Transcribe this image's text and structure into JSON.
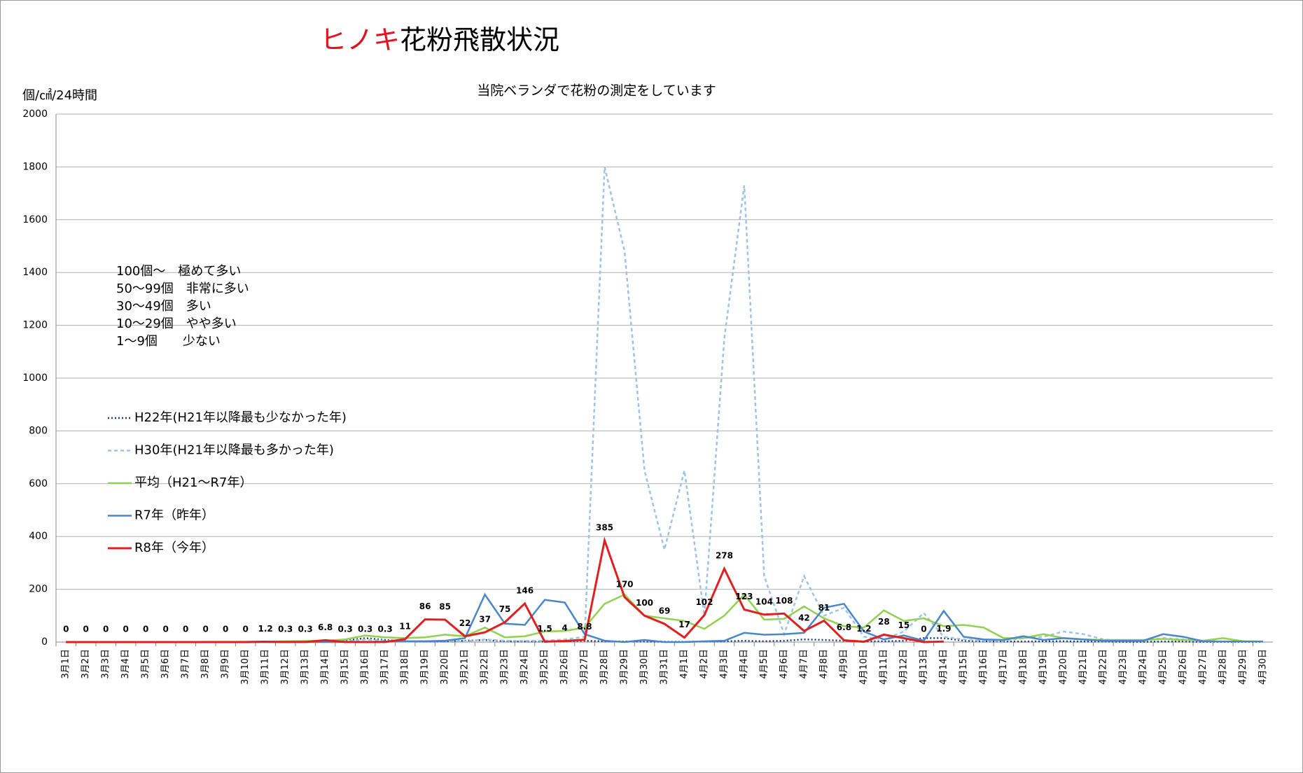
{
  "chart_data": {
    "type": "line",
    "title": [
      "ヒノキ",
      "花粉飛散状況"
    ],
    "title_colors": [
      "#e0141e",
      "#000000"
    ],
    "subtitle": "当院ベランダで花粉の測定をしています",
    "y_label": "個/㎠/24時間",
    "annotations": [
      "100個～　極めて多い",
      "50～99個　非常に多い",
      "30～49個　多い",
      "10～29個　やや多い",
      "1～9個　　少ない"
    ],
    "categories": [
      "3月1日",
      "3月2日",
      "3月3日",
      "3月4日",
      "3月5日",
      "3月6日",
      "3月7日",
      "3月8日",
      "3月9日",
      "3月10日",
      "3月11日",
      "3月12日",
      "3月13日",
      "3月14日",
      "3月15日",
      "3月16日",
      "3月17日",
      "3月18日",
      "3月19日",
      "3月20日",
      "3月21日",
      "3月22日",
      "3月23日",
      "3月24日",
      "3月25日",
      "3月26日",
      "3月27日",
      "3月28日",
      "3月29日",
      "3月30日",
      "3月31日",
      "4月1日",
      "4月2日",
      "4月3日",
      "4月4日",
      "4月5日",
      "4月6日",
      "4月7日",
      "4月8日",
      "4月9日",
      "4月10日",
      "4月11日",
      "4月12日",
      "4月13日",
      "4月14日",
      "4月15日",
      "4月16日",
      "4月17日",
      "4月18日",
      "4月19日",
      "4月20日",
      "4月21日",
      "4月22日",
      "4月23日",
      "4月24日",
      "4月25日",
      "4月26日",
      "4月27日",
      "4月28日",
      "4月29日",
      "4月30日"
    ],
    "ylim": [
      0,
      2000
    ],
    "yticks": [
      0,
      200,
      400,
      600,
      800,
      1000,
      1200,
      1400,
      1600,
      1800,
      2000
    ],
    "grid": true,
    "legend": "left",
    "series": [
      {
        "name": "H22年(H21年以降最も少なかった年)",
        "color": "#1f3d7a",
        "style": "dotted",
        "values": [
          0,
          0,
          0,
          0,
          0,
          0,
          0,
          0,
          0,
          0,
          0,
          0,
          0,
          2,
          5,
          15,
          8,
          3,
          2,
          3,
          5,
          8,
          3,
          2,
          2,
          3,
          5,
          3,
          2,
          2,
          1,
          1,
          2,
          3,
          5,
          3,
          5,
          10,
          8,
          5,
          3,
          3,
          5,
          15,
          15,
          5,
          3,
          2,
          2,
          3,
          3,
          2,
          2,
          1,
          1,
          2,
          2,
          1,
          1,
          1,
          1
        ]
      },
      {
        "name": "H30年(H21年以降最も多かった年)",
        "color": "#9dc3e6",
        "style": "dashed",
        "values": [
          0,
          0,
          0,
          0,
          0,
          0,
          0,
          0,
          0,
          0,
          0,
          0,
          0,
          2,
          3,
          10,
          5,
          3,
          3,
          5,
          3,
          10,
          5,
          5,
          5,
          10,
          20,
          1800,
          1480,
          650,
          350,
          650,
          100,
          1150,
          1730,
          250,
          30,
          250,
          100,
          130,
          20,
          10,
          40,
          110,
          20,
          10,
          5,
          5,
          15,
          20,
          40,
          30,
          10,
          5,
          5,
          15,
          10,
          5,
          2,
          2,
          2
        ]
      },
      {
        "name": "平均（H21～R7年）",
        "color": "#92d050",
        "style": "solid",
        "values": [
          0,
          0,
          0,
          0,
          0,
          0,
          0,
          1,
          1,
          1,
          2,
          3,
          4,
          5,
          10,
          25,
          18,
          15,
          18,
          28,
          22,
          55,
          18,
          22,
          40,
          42,
          55,
          145,
          180,
          100,
          90,
          80,
          50,
          100,
          180,
          85,
          88,
          135,
          90,
          60,
          55,
          120,
          80,
          90,
          60,
          65,
          55,
          15,
          15,
          30,
          15,
          10,
          8,
          8,
          8,
          12,
          8,
          5,
          15,
          3,
          2
        ]
      },
      {
        "name": "R7年（昨年）",
        "color": "#4a86c8",
        "style": "solid",
        "values": [
          0,
          0,
          0,
          0,
          0,
          0,
          0,
          0,
          0,
          0,
          0,
          0,
          0,
          0,
          0,
          0,
          2,
          3,
          3,
          5,
          15,
          180,
          70,
          65,
          160,
          150,
          30,
          5,
          0,
          8,
          0,
          0,
          3,
          5,
          35,
          28,
          30,
          35,
          130,
          145,
          40,
          10,
          25,
          5,
          118,
          20,
          10,
          8,
          22,
          8,
          15,
          10,
          5,
          5,
          5,
          30,
          20,
          3,
          2,
          2,
          2
        ]
      },
      {
        "name": "R8年（今年）",
        "color": "#e02020",
        "style": "solid",
        "width": 3,
        "data_labels": true,
        "values": [
          0,
          0,
          0,
          0,
          0,
          0,
          0,
          0,
          0,
          0,
          1.2,
          0.3,
          0.3,
          6.8,
          0.3,
          0.3,
          0.3,
          11,
          86,
          85,
          22,
          37,
          75,
          146,
          1.5,
          4,
          8.8,
          385,
          170,
          100,
          69,
          17,
          102,
          278,
          123,
          104,
          108,
          42,
          81,
          6.8,
          1.2,
          28,
          15,
          0,
          1.9,
          null,
          null,
          null,
          null,
          null,
          null,
          null,
          null,
          null,
          null,
          null,
          null,
          null,
          null,
          null,
          null
        ]
      }
    ]
  }
}
